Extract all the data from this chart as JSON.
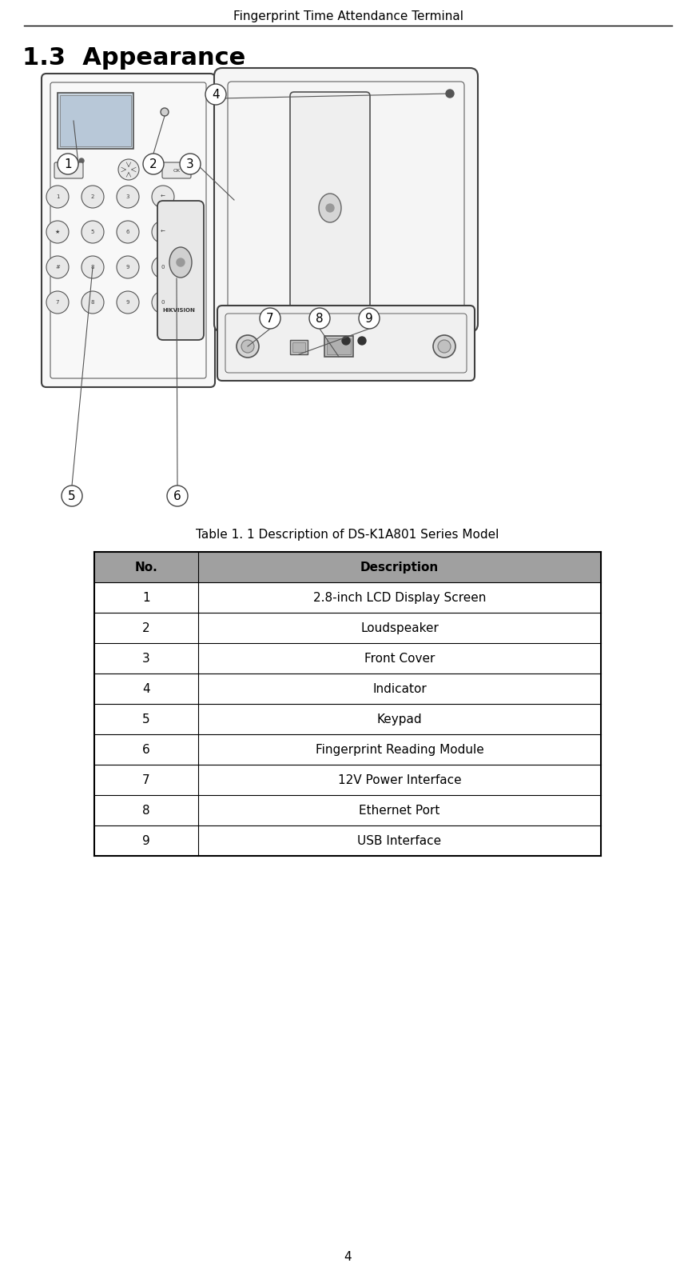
{
  "page_title": "Fingerprint Time Attendance Terminal",
  "section_title": "1.3  Appearance",
  "table_caption": "Table 1. 1 Description of DS-K1A801 Series Model",
  "table_header": [
    "No.",
    "Description"
  ],
  "table_rows": [
    [
      "1",
      "2.8-inch LCD Display Screen"
    ],
    [
      "2",
      "Loudspeaker"
    ],
    [
      "3",
      "Front Cover"
    ],
    [
      "4",
      "Indicator"
    ],
    [
      "5",
      "Keypad"
    ],
    [
      "6",
      "Fingerprint Reading Module"
    ],
    [
      "7",
      "12V Power Interface"
    ],
    [
      "8",
      "Ethernet Port"
    ],
    [
      "9",
      "USB Interface"
    ]
  ],
  "header_bg": "#a0a0a0",
  "table_border": "#000000",
  "header_text_color": "#000000",
  "row_text_color": "#000000",
  "page_number": "4",
  "bg_color": "#ffffff",
  "fig_width": 8.71,
  "fig_height": 15.94
}
